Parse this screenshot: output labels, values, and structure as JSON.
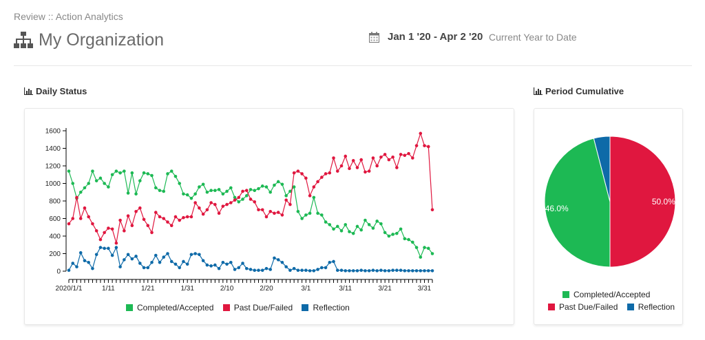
{
  "breadcrumb": "Review :: Action Analytics",
  "page_title": "My Organization",
  "date_range": "Jan 1 '20 - Apr 2 '20",
  "date_sub": "Current Year to Date",
  "colors": {
    "completed": "#1db954",
    "past_due": "#e0173f",
    "reflection": "#0e6aa8"
  },
  "icons": {
    "org": "sitemap-icon",
    "calendar": "calendar-icon",
    "chart": "bar-chart-icon"
  },
  "line_section_title": "Daily Status",
  "pie_section_title": "Period Cumulative",
  "chart_data": [
    {
      "type": "line",
      "title": "Daily Status",
      "xlabel": "",
      "ylabel": "",
      "ylim": [
        0,
        1600
      ],
      "y_ticks": [
        "0",
        "200",
        "400",
        "600",
        "800",
        "1000",
        "1200",
        "1400",
        "1600"
      ],
      "x_ticks": [
        {
          "index": 0,
          "label": "2020/1/1"
        },
        {
          "index": 10,
          "label": "1/11"
        },
        {
          "index": 20,
          "label": "1/21"
        },
        {
          "index": 30,
          "label": "1/31"
        },
        {
          "index": 40,
          "label": "2/10"
        },
        {
          "index": 50,
          "label": "2/20"
        },
        {
          "index": 60,
          "label": "3/1"
        },
        {
          "index": 70,
          "label": "3/11"
        },
        {
          "index": 80,
          "label": "3/21"
        },
        {
          "index": 90,
          "label": "3/31"
        }
      ],
      "x_dates": [
        "2020-01-01",
        "2020-01-02",
        "2020-01-03",
        "2020-01-04",
        "2020-01-05",
        "2020-01-06",
        "2020-01-07",
        "2020-01-08",
        "2020-01-09",
        "2020-01-10",
        "2020-01-11",
        "2020-01-12",
        "2020-01-13",
        "2020-01-14",
        "2020-01-15",
        "2020-01-16",
        "2020-01-17",
        "2020-01-18",
        "2020-01-19",
        "2020-01-20",
        "2020-01-21",
        "2020-01-22",
        "2020-01-23",
        "2020-01-24",
        "2020-01-25",
        "2020-01-26",
        "2020-01-27",
        "2020-01-28",
        "2020-01-29",
        "2020-01-30",
        "2020-01-31",
        "2020-02-01",
        "2020-02-02",
        "2020-02-03",
        "2020-02-04",
        "2020-02-05",
        "2020-02-06",
        "2020-02-07",
        "2020-02-08",
        "2020-02-09",
        "2020-02-10",
        "2020-02-11",
        "2020-02-12",
        "2020-02-13",
        "2020-02-14",
        "2020-02-15",
        "2020-02-16",
        "2020-02-17",
        "2020-02-18",
        "2020-02-19",
        "2020-02-20",
        "2020-02-21",
        "2020-02-22",
        "2020-02-23",
        "2020-02-24",
        "2020-02-25",
        "2020-02-26",
        "2020-02-27",
        "2020-02-28",
        "2020-02-29",
        "2020-03-01",
        "2020-03-02",
        "2020-03-03",
        "2020-03-04",
        "2020-03-05",
        "2020-03-06",
        "2020-03-07",
        "2020-03-08",
        "2020-03-09",
        "2020-03-10",
        "2020-03-11",
        "2020-03-12",
        "2020-03-13",
        "2020-03-14",
        "2020-03-15",
        "2020-03-16",
        "2020-03-17",
        "2020-03-18",
        "2020-03-19",
        "2020-03-20",
        "2020-03-21",
        "2020-03-22",
        "2020-03-23",
        "2020-03-24",
        "2020-03-25",
        "2020-03-26",
        "2020-03-27",
        "2020-03-28",
        "2020-03-29",
        "2020-03-30",
        "2020-03-31",
        "2020-04-01",
        "2020-04-02"
      ],
      "legend_position": "bottom",
      "series": [
        {
          "name": "Completed/Accepted",
          "color": "#1db954",
          "values": [
            1140,
            1000,
            830,
            900,
            950,
            1000,
            1140,
            1030,
            1060,
            1000,
            960,
            1100,
            1140,
            1120,
            1140,
            890,
            1120,
            880,
            1030,
            1120,
            1110,
            1090,
            950,
            920,
            910,
            1110,
            1140,
            1080,
            1000,
            880,
            870,
            830,
            880,
            960,
            990,
            900,
            920,
            920,
            930,
            880,
            910,
            950,
            840,
            790,
            820,
            860,
            930,
            920,
            940,
            970,
            960,
            900,
            980,
            1020,
            990,
            860,
            910,
            960,
            680,
            600,
            640,
            660,
            840,
            660,
            640,
            560,
            530,
            480,
            510,
            460,
            530,
            450,
            430,
            510,
            470,
            580,
            530,
            490,
            570,
            540,
            440,
            400,
            420,
            430,
            480,
            370,
            360,
            330,
            270,
            160,
            270,
            260,
            200
          ]
        },
        {
          "name": "Past Due/Failed",
          "color": "#e0173f",
          "values": [
            540,
            600,
            840,
            600,
            720,
            620,
            540,
            460,
            360,
            440,
            490,
            480,
            320,
            580,
            460,
            630,
            520,
            680,
            720,
            590,
            520,
            440,
            670,
            620,
            600,
            560,
            520,
            620,
            580,
            610,
            620,
            620,
            780,
            720,
            650,
            700,
            780,
            760,
            660,
            740,
            760,
            780,
            810,
            840,
            910,
            920,
            820,
            790,
            700,
            700,
            620,
            680,
            660,
            670,
            640,
            810,
            760,
            1120,
            1140,
            1110,
            1060,
            860,
            960,
            1020,
            1070,
            1110,
            1120,
            1290,
            1140,
            1200,
            1310,
            1170,
            1260,
            1180,
            1270,
            1130,
            1140,
            1290,
            1200,
            1300,
            1330,
            1270,
            1300,
            1180,
            1330,
            1320,
            1340,
            1290,
            1430,
            1570,
            1430,
            1420,
            700
          ]
        },
        {
          "name": "Reflection",
          "color": "#0e6aa8",
          "values": [
            10,
            90,
            50,
            210,
            120,
            100,
            30,
            190,
            270,
            260,
            260,
            180,
            270,
            50,
            130,
            190,
            140,
            170,
            90,
            40,
            40,
            100,
            180,
            100,
            160,
            200,
            110,
            80,
            40,
            110,
            80,
            190,
            200,
            190,
            120,
            70,
            60,
            70,
            30,
            100,
            80,
            100,
            20,
            40,
            90,
            30,
            20,
            10,
            10,
            10,
            30,
            20,
            150,
            130,
            100,
            50,
            10,
            30,
            10,
            10,
            10,
            5,
            5,
            20,
            40,
            40,
            100,
            110,
            10,
            10,
            5,
            5,
            5,
            5,
            10,
            5,
            5,
            10,
            5,
            10,
            5,
            5,
            10,
            10,
            10,
            5,
            5,
            5,
            5,
            5,
            5,
            5,
            5
          ]
        }
      ]
    },
    {
      "type": "pie",
      "title": "Period Cumulative",
      "legend_position": "bottom",
      "slices": [
        {
          "name": "Past Due/Failed",
          "value": 50.0,
          "label": "50.0%",
          "color": "#e0173f"
        },
        {
          "name": "Completed/Accepted",
          "value": 46.0,
          "label": "46.0%",
          "color": "#1db954"
        },
        {
          "name": "Reflection",
          "value": 4.0,
          "label": "",
          "color": "#0e6aa8"
        }
      ]
    }
  ]
}
